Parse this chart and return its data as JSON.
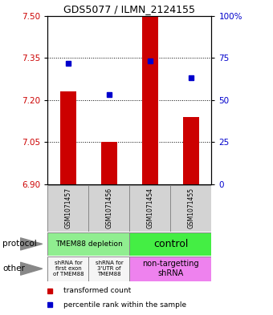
{
  "title": "GDS5077 / ILMN_2124155",
  "samples": [
    "GSM1071457",
    "GSM1071456",
    "GSM1071454",
    "GSM1071455"
  ],
  "bar_values": [
    7.23,
    7.05,
    7.5,
    7.14
  ],
  "dot_values": [
    72,
    53,
    73,
    63
  ],
  "ylim_left": [
    6.9,
    7.5
  ],
  "ylim_right": [
    0,
    100
  ],
  "yticks_left": [
    6.9,
    7.05,
    7.2,
    7.35,
    7.5
  ],
  "yticks_right": [
    0,
    25,
    50,
    75,
    100
  ],
  "ytick_labels_right": [
    "0",
    "25",
    "50",
    "75",
    "100%"
  ],
  "hlines": [
    7.05,
    7.2,
    7.35
  ],
  "bar_color": "#cc0000",
  "dot_color": "#0000cc",
  "bar_bottom": 6.9,
  "prot_left_label": "TMEM88 depletion",
  "prot_left_color": "#90ee90",
  "prot_right_label": "control",
  "prot_right_color": "#44ee44",
  "other_col0": "shRNA for\nfirst exon\nof TMEM88",
  "other_col1": "shRNA for\n3'UTR of\nTMEM88",
  "other_col23": "non-targetting\nshRNA",
  "other_col01_color": "#f5f5f5",
  "other_col23_color": "#ee82ee",
  "cell_edge_color": "#888888",
  "sample_cell_color": "#d3d3d3",
  "bar_width": 0.4,
  "left_label_color": "#cc0000",
  "right_label_color": "#0000cc",
  "title_fontsize": 9,
  "tick_fontsize": 7.5
}
